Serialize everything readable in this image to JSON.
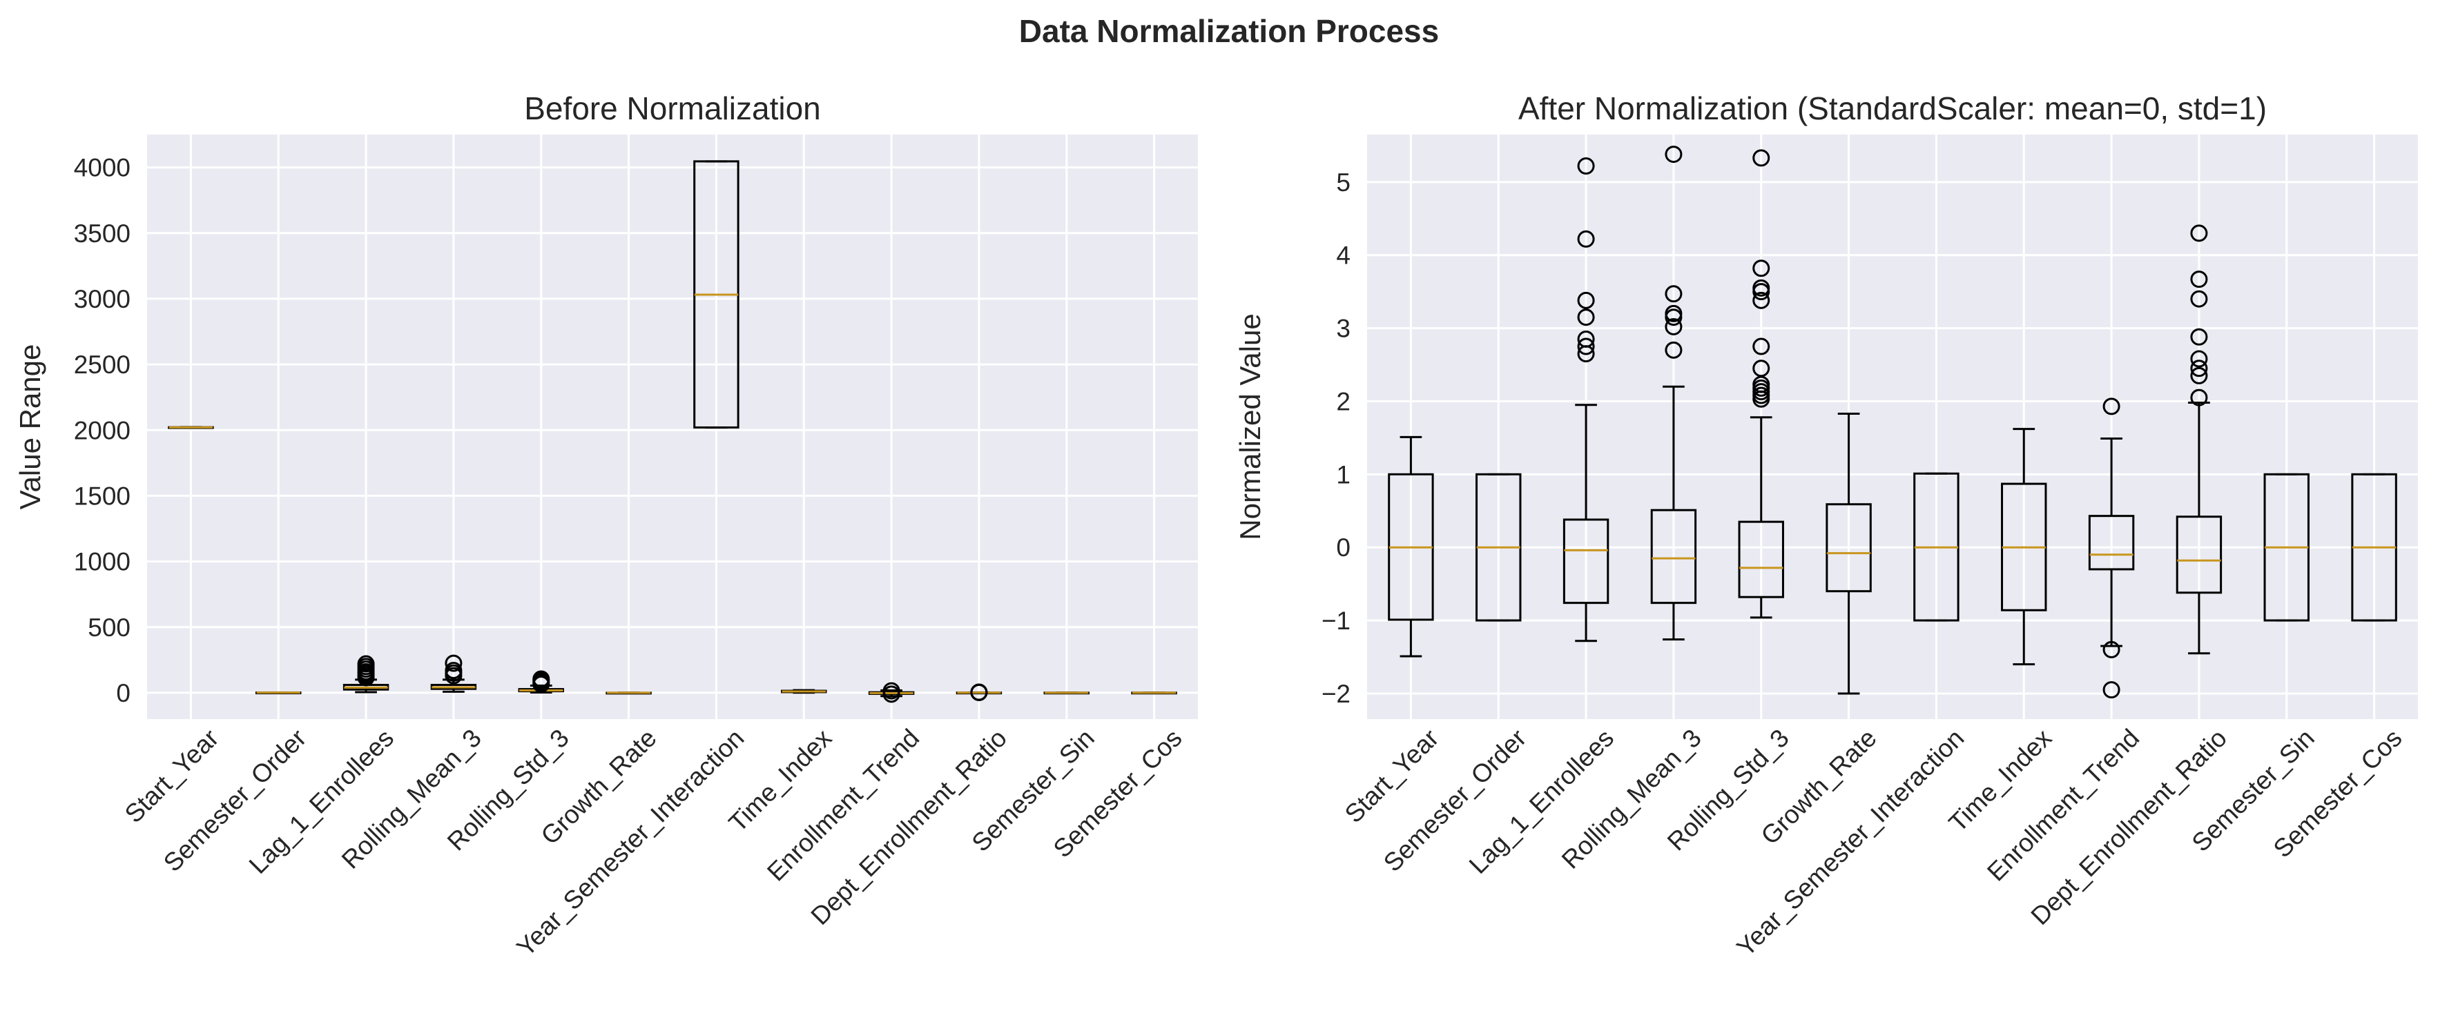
{
  "figure_title": "Data Normalization Process",
  "colors": {
    "plot_bg": "#EAEAF2",
    "grid": "#FFFFFF",
    "box": "#000000",
    "median": "#C8961E"
  },
  "chart_data": [
    {
      "type": "box",
      "title": "Before Normalization",
      "xlabel": "",
      "ylabel": "Value Range",
      "ylim": [
        -200,
        4250
      ],
      "yticks": [
        0,
        500,
        1000,
        1500,
        2000,
        2500,
        3000,
        3500,
        4000
      ],
      "ytick_labels": [
        "0",
        "500",
        "1000",
        "1500",
        "2000",
        "2500",
        "3000",
        "3500",
        "4000"
      ],
      "grid": true,
      "categories": [
        "Start_Year",
        "Semester_Order",
        "Lag_1_Enrollees",
        "Rolling_Mean_3",
        "Rolling_Std_3",
        "Growth_Rate",
        "Year_Semester_Interaction",
        "Time_Index",
        "Enrollment_Trend",
        "Dept_Enrollment_Ratio",
        "Semester_Sin",
        "Semester_Cos"
      ],
      "boxes": [
        {
          "whislo": 2019,
          "q1": 2020,
          "med": 2021,
          "q3": 2022,
          "whishi": 2023,
          "fliers": []
        },
        {
          "whislo": 1,
          "q1": 1,
          "med": 1.5,
          "q3": 2,
          "whishi": 2,
          "fliers": []
        },
        {
          "whislo": 5,
          "q1": 25,
          "med": 40,
          "q3": 60,
          "whishi": 100,
          "fliers": [
            115,
            130,
            145,
            160,
            180,
            200,
            220
          ]
        },
        {
          "whislo": 8,
          "q1": 30,
          "med": 42,
          "q3": 60,
          "whishi": 100,
          "fliers": [
            130,
            150,
            170,
            225
          ]
        },
        {
          "whislo": 2,
          "q1": 12,
          "med": 18,
          "q3": 28,
          "whishi": 55,
          "fliers": [
            65,
            75,
            85,
            95,
            105
          ]
        },
        {
          "whislo": -1,
          "q1": -0.2,
          "med": 0,
          "q3": 0.2,
          "whishi": 0.8,
          "fliers": []
        },
        {
          "whislo": 2019,
          "q1": 2020,
          "med": 3031,
          "q3": 4046,
          "whishi": 4046,
          "fliers": []
        },
        {
          "whislo": 1,
          "q1": 5,
          "med": 10,
          "q3": 15,
          "whishi": 20,
          "fliers": []
        },
        {
          "whislo": -25,
          "q1": -8,
          "med": -2,
          "q3": 4,
          "whishi": 18,
          "fliers": [
            -10,
            15
          ]
        },
        {
          "whislo": 0.2,
          "q1": 0.6,
          "med": 1.0,
          "q3": 1.3,
          "whishi": 2,
          "fliers": [
            2.5,
            3,
            5
          ]
        },
        {
          "whislo": -1,
          "q1": -1,
          "med": 0,
          "q3": 1,
          "whishi": 1,
          "fliers": []
        },
        {
          "whislo": -1,
          "q1": -1,
          "med": 0,
          "q3": 1,
          "whishi": 1,
          "fliers": []
        }
      ]
    },
    {
      "type": "box",
      "title": "After Normalization (StandardScaler: mean=0, std=1)",
      "xlabel": "",
      "ylabel": "Normalized Value",
      "ylim": [
        -2.35,
        5.65
      ],
      "yticks": [
        -2,
        -1,
        0,
        1,
        2,
        3,
        4,
        5
      ],
      "ytick_labels": [
        "−2",
        "−1",
        "0",
        "1",
        "2",
        "3",
        "4",
        "5"
      ],
      "grid": true,
      "categories": [
        "Start_Year",
        "Semester_Order",
        "Lag_1_Enrollees",
        "Rolling_Mean_3",
        "Rolling_Std_3",
        "Growth_Rate",
        "Year_Semester_Interaction",
        "Time_Index",
        "Enrollment_Trend",
        "Dept_Enrollment_Ratio",
        "Semester_Sin",
        "Semester_Cos"
      ],
      "boxes": [
        {
          "whislo": -1.49,
          "q1": -0.99,
          "med": 0.0,
          "q3": 1.0,
          "whishi": 1.51,
          "fliers": []
        },
        {
          "whislo": -1.0,
          "q1": -1.0,
          "med": 0.0,
          "q3": 1.0,
          "whishi": 1.0,
          "fliers": []
        },
        {
          "whislo": -1.28,
          "q1": -0.76,
          "med": -0.04,
          "q3": 0.38,
          "whishi": 1.95,
          "fliers": [
            2.65,
            2.75,
            2.85,
            3.15,
            3.38,
            4.22,
            5.22
          ]
        },
        {
          "whislo": -1.26,
          "q1": -0.76,
          "med": -0.15,
          "q3": 0.51,
          "whishi": 2.2,
          "fliers": [
            2.7,
            3.02,
            3.15,
            3.2,
            3.47,
            5.38
          ]
        },
        {
          "whislo": -0.96,
          "q1": -0.68,
          "med": -0.28,
          "q3": 0.35,
          "whishi": 1.78,
          "fliers": [
            2.03,
            2.08,
            2.13,
            2.18,
            2.23,
            2.45,
            2.75,
            3.38,
            3.5,
            3.55,
            3.82,
            5.33
          ]
        },
        {
          "whislo": -2.0,
          "q1": -0.6,
          "med": -0.08,
          "q3": 0.59,
          "whishi": 1.83,
          "fliers": []
        },
        {
          "whislo": -1.0,
          "q1": -1.0,
          "med": 0.0,
          "q3": 1.01,
          "whishi": 1.01,
          "fliers": []
        },
        {
          "whislo": -1.6,
          "q1": -0.86,
          "med": 0.0,
          "q3": 0.87,
          "whishi": 1.62,
          "fliers": []
        },
        {
          "whislo": -1.35,
          "q1": -0.3,
          "med": -0.1,
          "q3": 0.43,
          "whishi": 1.49,
          "fliers": [
            -1.4,
            -1.95,
            1.93
          ]
        },
        {
          "whislo": -1.45,
          "q1": -0.62,
          "med": -0.18,
          "q3": 0.42,
          "whishi": 1.98,
          "fliers": [
            2.05,
            2.35,
            2.45,
            2.58,
            2.88,
            3.4,
            3.67,
            4.3
          ]
        },
        {
          "whislo": -1.0,
          "q1": -1.0,
          "med": 0.0,
          "q3": 1.0,
          "whishi": 1.0,
          "fliers": []
        },
        {
          "whislo": -1.0,
          "q1": -1.0,
          "med": 0.0,
          "q3": 1.0,
          "whishi": 1.0,
          "fliers": []
        }
      ]
    }
  ]
}
